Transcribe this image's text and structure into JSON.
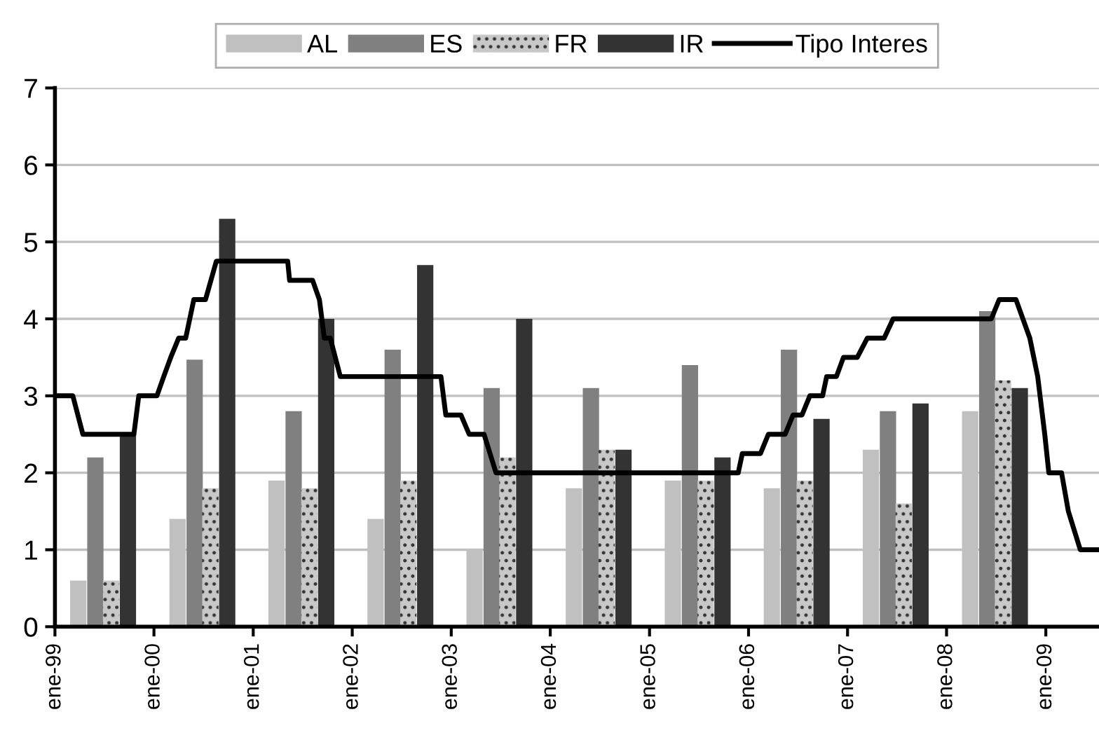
{
  "chart_data": {
    "type": "bar",
    "series": [
      {
        "name": "AL",
        "color": "#c0c0c0",
        "x": [
          "1999-03-28",
          "2000-03-28",
          "2001-03-28",
          "2002-03-28",
          "2003-03-28",
          "2004-03-28",
          "2005-03-28",
          "2006-03-28",
          "2007-03-28",
          "2008-03-28"
        ],
        "values": [
          0.6,
          1.4,
          1.9,
          1.4,
          1.0,
          1.8,
          1.9,
          1.8,
          2.3,
          2.8
        ]
      },
      {
        "name": "ES",
        "color": "#808080",
        "x": [
          "1999-05-30",
          "2000-05-30",
          "2001-05-30",
          "2002-05-30",
          "2003-05-30",
          "2004-05-30",
          "2005-05-30",
          "2006-05-30",
          "2007-05-30",
          "2008-05-30"
        ],
        "values": [
          2.2,
          3.47,
          2.8,
          3.6,
          3.1,
          3.1,
          3.4,
          3.6,
          2.8,
          4.1
        ]
      },
      {
        "name": "FR",
        "color": "#c8c8c8",
        "x": [
          "1999-07-27",
          "2000-07-27",
          "2001-07-27",
          "2002-07-27",
          "2003-07-27",
          "2004-07-27",
          "2005-07-27",
          "2006-07-27",
          "2007-07-27",
          "2008-07-27"
        ],
        "values": [
          0.6,
          1.8,
          1.8,
          1.9,
          2.2,
          2.3,
          1.9,
          1.9,
          1.6,
          3.2
        ]
      },
      {
        "name": "IR",
        "color": "#333333",
        "x": [
          "1999-09-27",
          "2000-09-27",
          "2001-09-27",
          "2002-09-27",
          "2003-09-27",
          "2004-09-27",
          "2005-09-27",
          "2006-09-27",
          "2007-09-27",
          "2008-09-27"
        ],
        "values": [
          2.5,
          5.3,
          4.0,
          4.7,
          4.0,
          2.3,
          2.2,
          2.7,
          2.9,
          3.1
        ]
      },
      {
        "name": "Tipo Interes",
        "type": "line",
        "color": "#000000",
        "x": [
          "1999-01-01",
          "1999-03-08",
          "1999-04-14",
          "1999-10-19",
          "1999-11-06",
          "2000-01-12",
          "2000-02-06",
          "2000-03-03",
          "2000-04-01",
          "2000-04-27",
          "2000-05-27",
          "2000-07-09",
          "2000-08-18",
          "2001-05-08",
          "2001-05-15",
          "2001-08-08",
          "2001-09-02",
          "2001-09-20",
          "2001-10-12",
          "2001-11-18",
          "2002-11-24",
          "2002-12-12",
          "2003-02-06",
          "2003-03-08",
          "2003-05-02",
          "2003-06-15",
          "2005-11-24",
          "2005-12-09",
          "2006-02-14",
          "2006-03-15",
          "2006-05-16",
          "2006-06-14",
          "2006-07-17",
          "2006-08-15",
          "2006-10-01",
          "2006-10-16",
          "2006-11-21",
          "2006-12-17",
          "2007-02-06",
          "2007-03-15",
          "2007-05-16",
          "2007-06-18",
          "2008-06-14",
          "2008-07-13",
          "2008-09-13",
          "2008-11-03",
          "2008-12-02",
          "2008-12-28",
          "2009-01-12",
          "2009-02-28",
          "2009-03-25",
          "2009-05-08",
          "2009-07-16"
        ],
        "values": [
          3.0,
          3.0,
          2.5,
          2.5,
          3.0,
          3.0,
          3.25,
          3.5,
          3.75,
          3.75,
          4.25,
          4.25,
          4.75,
          4.75,
          4.5,
          4.5,
          4.25,
          3.75,
          3.75,
          3.25,
          3.25,
          2.75,
          2.75,
          2.5,
          2.5,
          2.0,
          2.0,
          2.25,
          2.25,
          2.5,
          2.5,
          2.75,
          2.75,
          3.0,
          3.0,
          3.25,
          3.25,
          3.5,
          3.5,
          3.75,
          3.75,
          4.0,
          4.0,
          4.25,
          4.25,
          3.75,
          3.25,
          2.5,
          2.0,
          2.0,
          1.5,
          1.0,
          1.0
        ]
      }
    ],
    "xlim": [
      "1999-01-01",
      "2009-07-16"
    ],
    "xticks": [
      {
        "value": "1999-01-01",
        "label": "ene-99"
      },
      {
        "value": "2000-01-01",
        "label": "ene-00"
      },
      {
        "value": "2001-01-01",
        "label": "ene-01"
      },
      {
        "value": "2002-01-01",
        "label": "ene-02"
      },
      {
        "value": "2003-01-01",
        "label": "ene-03"
      },
      {
        "value": "2004-01-01",
        "label": "ene-04"
      },
      {
        "value": "2005-01-01",
        "label": "ene-05"
      },
      {
        "value": "2006-01-01",
        "label": "ene-06"
      },
      {
        "value": "2007-01-01",
        "label": "ene-07"
      },
      {
        "value": "2008-01-01",
        "label": "ene-08"
      },
      {
        "value": "2009-01-01",
        "label": "ene-09"
      }
    ],
    "ylim": [
      0,
      7
    ],
    "yticks": [
      0,
      1,
      2,
      3,
      4,
      5,
      6,
      7
    ],
    "grid": "y",
    "legend": "top"
  }
}
